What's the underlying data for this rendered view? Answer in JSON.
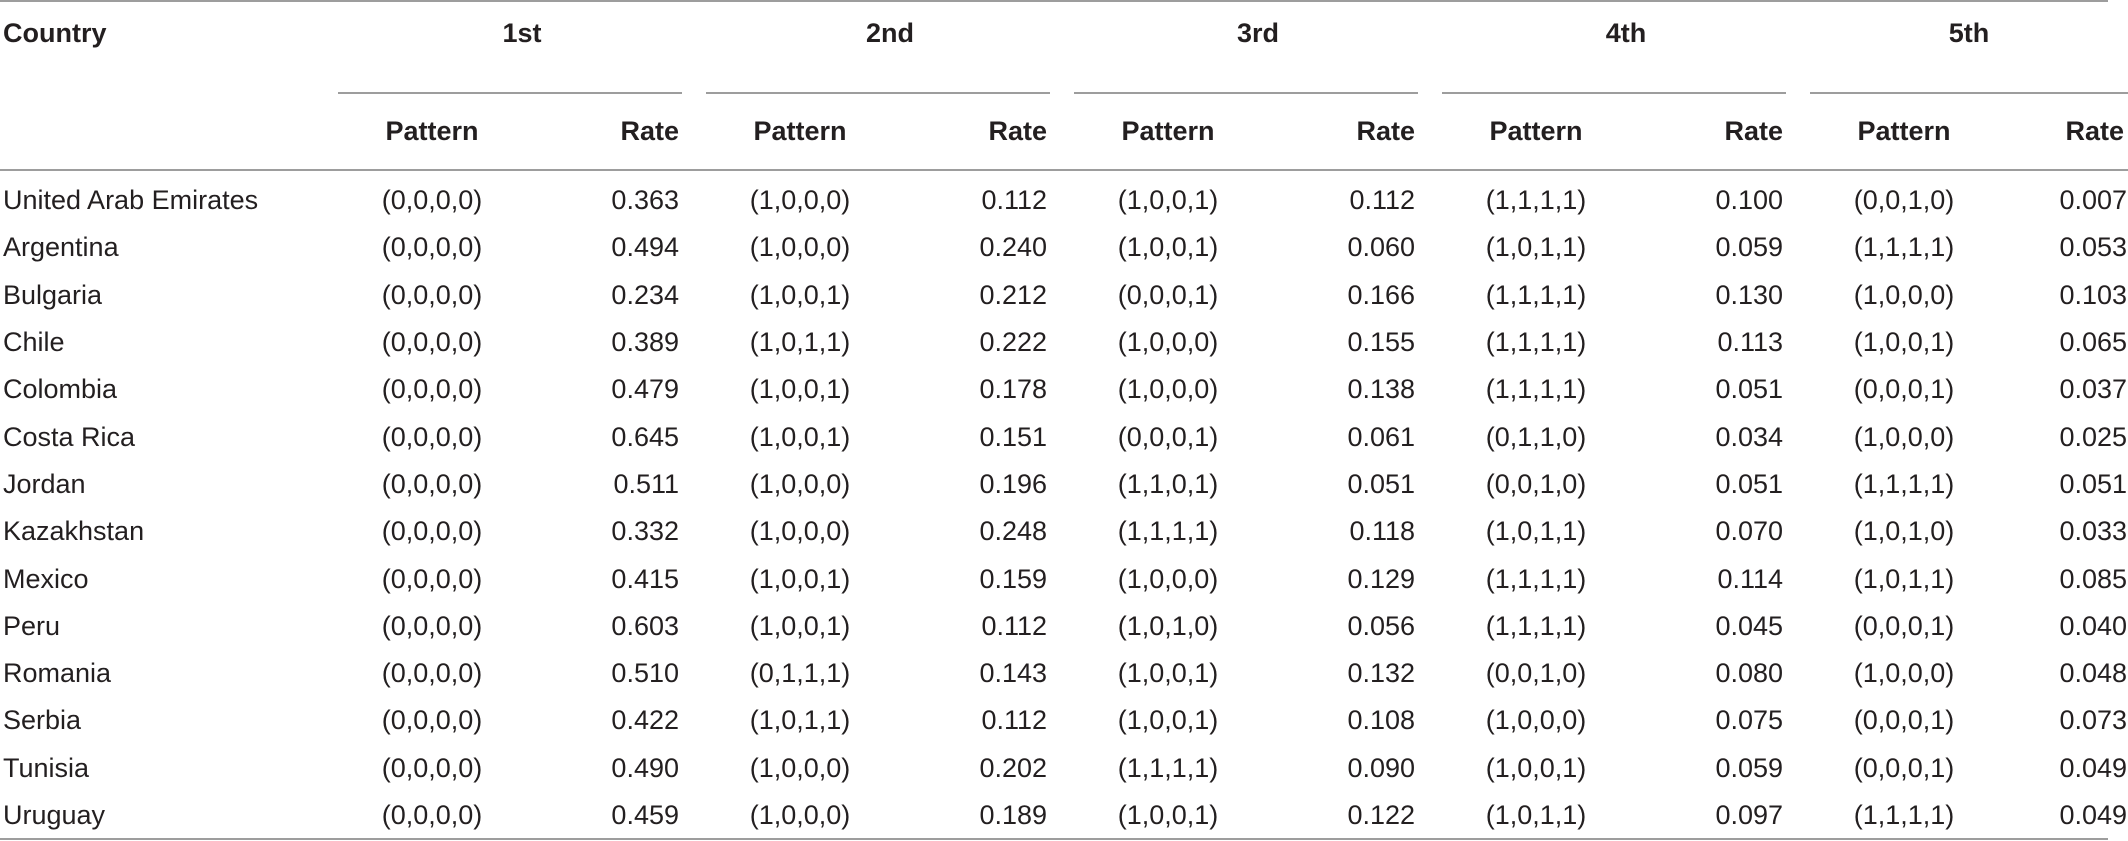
{
  "table": {
    "country_header": "Country",
    "groups": [
      "1st",
      "2nd",
      "3rd",
      "4th",
      "5th"
    ],
    "sub_headers": {
      "pattern": "Pattern",
      "rate": "Rate"
    },
    "rows": [
      {
        "country": "United Arab Emirates",
        "cells": [
          [
            "(0,0,0,0)",
            "0.363"
          ],
          [
            "(1,0,0,0)",
            "0.112"
          ],
          [
            "(1,0,0,1)",
            "0.112"
          ],
          [
            "(1,1,1,1)",
            "0.100"
          ],
          [
            "(0,0,1,0)",
            "0.007"
          ]
        ]
      },
      {
        "country": "Argentina",
        "cells": [
          [
            "(0,0,0,0)",
            "0.494"
          ],
          [
            "(1,0,0,0)",
            "0.240"
          ],
          [
            "(1,0,0,1)",
            "0.060"
          ],
          [
            "(1,0,1,1)",
            "0.059"
          ],
          [
            "(1,1,1,1)",
            "0.053"
          ]
        ]
      },
      {
        "country": "Bulgaria",
        "cells": [
          [
            "(0,0,0,0)",
            "0.234"
          ],
          [
            "(1,0,0,1)",
            "0.212"
          ],
          [
            "(0,0,0,1)",
            "0.166"
          ],
          [
            "(1,1,1,1)",
            "0.130"
          ],
          [
            "(1,0,0,0)",
            "0.103"
          ]
        ]
      },
      {
        "country": "Chile",
        "cells": [
          [
            "(0,0,0,0)",
            "0.389"
          ],
          [
            "(1,0,1,1)",
            "0.222"
          ],
          [
            "(1,0,0,0)",
            "0.155"
          ],
          [
            "(1,1,1,1)",
            "0.113"
          ],
          [
            "(1,0,0,1)",
            "0.065"
          ]
        ]
      },
      {
        "country": "Colombia",
        "cells": [
          [
            "(0,0,0,0)",
            "0.479"
          ],
          [
            "(1,0,0,1)",
            "0.178"
          ],
          [
            "(1,0,0,0)",
            "0.138"
          ],
          [
            "(1,1,1,1)",
            "0.051"
          ],
          [
            "(0,0,0,1)",
            "0.037"
          ]
        ]
      },
      {
        "country": "Costa Rica",
        "cells": [
          [
            "(0,0,0,0)",
            "0.645"
          ],
          [
            "(1,0,0,1)",
            "0.151"
          ],
          [
            "(0,0,0,1)",
            "0.061"
          ],
          [
            "(0,1,1,0)",
            "0.034"
          ],
          [
            "(1,0,0,0)",
            "0.025"
          ]
        ]
      },
      {
        "country": "Jordan",
        "cells": [
          [
            "(0,0,0,0)",
            "0.511"
          ],
          [
            "(1,0,0,0)",
            "0.196"
          ],
          [
            "(1,1,0,1)",
            "0.051"
          ],
          [
            "(0,0,1,0)",
            "0.051"
          ],
          [
            "(1,1,1,1)",
            "0.051"
          ]
        ]
      },
      {
        "country": "Kazakhstan",
        "cells": [
          [
            "(0,0,0,0)",
            "0.332"
          ],
          [
            "(1,0,0,0)",
            "0.248"
          ],
          [
            "(1,1,1,1)",
            "0.118"
          ],
          [
            "(1,0,1,1)",
            "0.070"
          ],
          [
            "(1,0,1,0)",
            "0.033"
          ]
        ]
      },
      {
        "country": "Mexico",
        "cells": [
          [
            "(0,0,0,0)",
            "0.415"
          ],
          [
            "(1,0,0,1)",
            "0.159"
          ],
          [
            "(1,0,0,0)",
            "0.129"
          ],
          [
            "(1,1,1,1)",
            "0.114"
          ],
          [
            "(1,0,1,1)",
            "0.085"
          ]
        ]
      },
      {
        "country": "Peru",
        "cells": [
          [
            "(0,0,0,0)",
            "0.603"
          ],
          [
            "(1,0,0,1)",
            "0.112"
          ],
          [
            "(1,0,1,0)",
            "0.056"
          ],
          [
            "(1,1,1,1)",
            "0.045"
          ],
          [
            "(0,0,0,1)",
            "0.040"
          ]
        ]
      },
      {
        "country": "Romania",
        "cells": [
          [
            "(0,0,0,0)",
            "0.510"
          ],
          [
            "(0,1,1,1)",
            "0.143"
          ],
          [
            "(1,0,0,1)",
            "0.132"
          ],
          [
            "(0,0,1,0)",
            "0.080"
          ],
          [
            "(1,0,0,0)",
            "0.048"
          ]
        ]
      },
      {
        "country": "Serbia",
        "cells": [
          [
            "(0,0,0,0)",
            "0.422"
          ],
          [
            "(1,0,1,1)",
            "0.112"
          ],
          [
            "(1,0,0,1)",
            "0.108"
          ],
          [
            "(1,0,0,0)",
            "0.075"
          ],
          [
            "(0,0,0,1)",
            "0.073"
          ]
        ]
      },
      {
        "country": "Tunisia",
        "cells": [
          [
            "(0,0,0,0)",
            "0.490"
          ],
          [
            "(1,0,0,0)",
            "0.202"
          ],
          [
            "(1,1,1,1)",
            "0.090"
          ],
          [
            "(1,0,0,1)",
            "0.059"
          ],
          [
            "(0,0,0,1)",
            "0.049"
          ]
        ]
      },
      {
        "country": "Uruguay",
        "cells": [
          [
            "(0,0,0,0)",
            "0.459"
          ],
          [
            "(1,0,0,0)",
            "0.189"
          ],
          [
            "(1,0,0,1)",
            "0.122"
          ],
          [
            "(1,0,1,1)",
            "0.097"
          ],
          [
            "(1,1,1,1)",
            "0.049"
          ]
        ]
      }
    ]
  },
  "colors": {
    "text": "#231f20",
    "rule": "#9d9d9d",
    "background": "#ffffff"
  }
}
